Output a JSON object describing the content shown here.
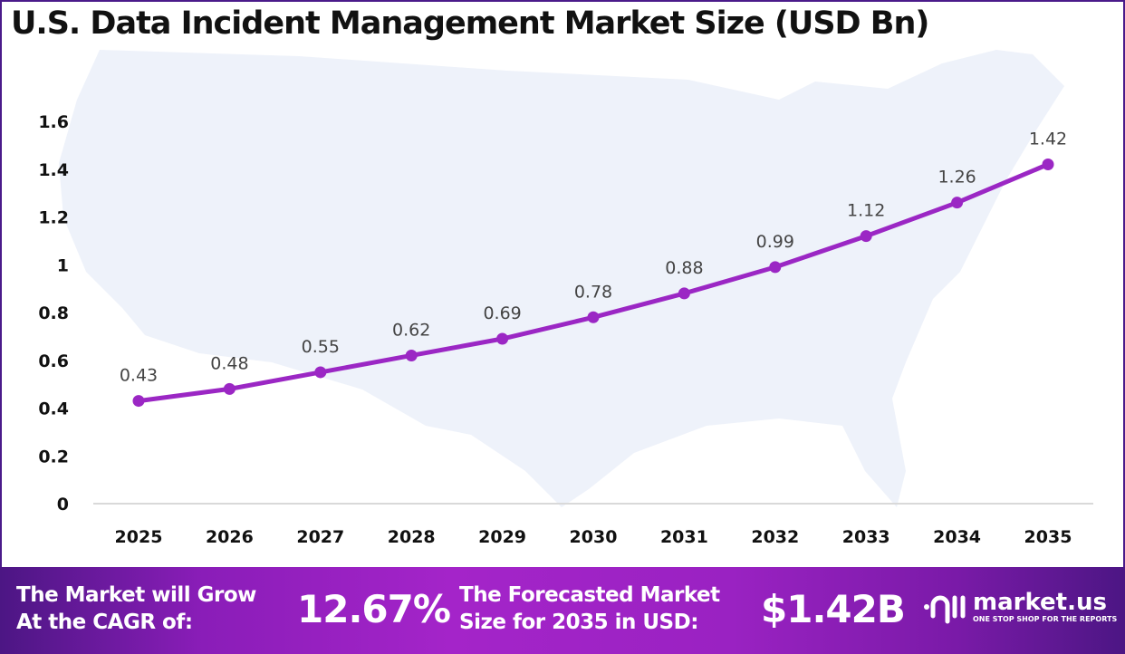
{
  "chart_data": {
    "type": "line",
    "title": "U.S. Data Incident Management Market Size (USD Bn)",
    "xlabel": "",
    "ylabel": "",
    "categories": [
      "2025",
      "2026",
      "2027",
      "2028",
      "2029",
      "2030",
      "2031",
      "2032",
      "2033",
      "2034",
      "2035"
    ],
    "values": [
      0.43,
      0.48,
      0.55,
      0.62,
      0.69,
      0.78,
      0.88,
      0.99,
      1.12,
      1.26,
      1.42
    ],
    "data_labels": [
      "0.43",
      "0.48",
      "0.55",
      "0.62",
      "0.69",
      "0.78",
      "0.88",
      "0.99",
      "1.12",
      "1.26",
      "1.42"
    ],
    "ylim": [
      0,
      1.6
    ],
    "yticks": [
      "0",
      "0.2",
      "0.4",
      "0.6",
      "0.8",
      "1",
      "1.2",
      "1.4",
      "1.6"
    ],
    "grid": false,
    "line_color": "#9b27c4",
    "background_image": "us-map-silhouette"
  },
  "banner": {
    "cagr_label_line1": "The Market will Grow",
    "cagr_label_line2": "At the CAGR of:",
    "cagr_value": "12.67%",
    "forecast_label_line1": "The Forecasted Market",
    "forecast_label_line2": "Size for 2035 in USD:",
    "forecast_value": "$1.42B",
    "logo_text": "market.us",
    "logo_tagline": "ONE STOP SHOP FOR THE REPORTS"
  }
}
